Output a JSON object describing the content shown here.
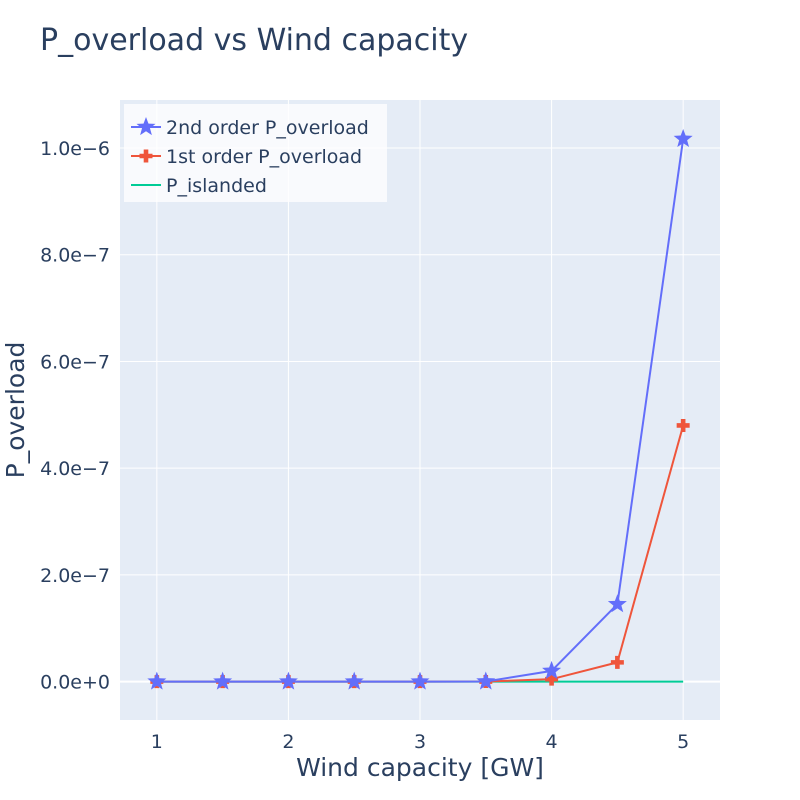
{
  "chart_data": {
    "type": "line",
    "title": "P_overload vs Wind capacity",
    "xlabel": "Wind capacity [GW]",
    "ylabel": "P_overload",
    "xlim": [
      0.72,
      5.28
    ],
    "ylim": [
      -7.2e-08,
      1.09e-06
    ],
    "xticks": [
      {
        "value": 1,
        "label": "1"
      },
      {
        "value": 2,
        "label": "2"
      },
      {
        "value": 3,
        "label": "3"
      },
      {
        "value": 4,
        "label": "4"
      },
      {
        "value": 5,
        "label": "5"
      }
    ],
    "yticks": [
      {
        "value": 0,
        "label": "0.0e+0"
      },
      {
        "value": 2e-07,
        "label": "2.0e−7"
      },
      {
        "value": 4e-07,
        "label": "4.0e−7"
      },
      {
        "value": 6e-07,
        "label": "6.0e−7"
      },
      {
        "value": 8e-07,
        "label": "8.0e−7"
      },
      {
        "value": 1e-06,
        "label": "1.0e−6"
      }
    ],
    "x": [
      1,
      1.5,
      2,
      2.5,
      3,
      3.5,
      4,
      4.5,
      5
    ],
    "series": [
      {
        "name": "2nd order P_overload",
        "color": "#636efa",
        "marker": "star",
        "values": [
          0,
          0,
          0,
          0,
          0,
          2e-10,
          2e-08,
          1.45e-07,
          1.017e-06
        ]
      },
      {
        "name": "1st order P_overload",
        "color": "#ef553b",
        "marker": "cross",
        "values": [
          0,
          0,
          0,
          0,
          0,
          1e-10,
          4.5e-09,
          3.6e-08,
          4.8e-07
        ]
      },
      {
        "name": "P_islanded",
        "color": "#00cc96",
        "marker": "none",
        "values": [
          0,
          0,
          0,
          0,
          0,
          0,
          0,
          0,
          0
        ]
      }
    ],
    "grid": true,
    "legend_position": "top-left",
    "plot_background": "#e5ecf6",
    "grid_color": "#ffffff",
    "text_color": "#2a3f5f"
  }
}
